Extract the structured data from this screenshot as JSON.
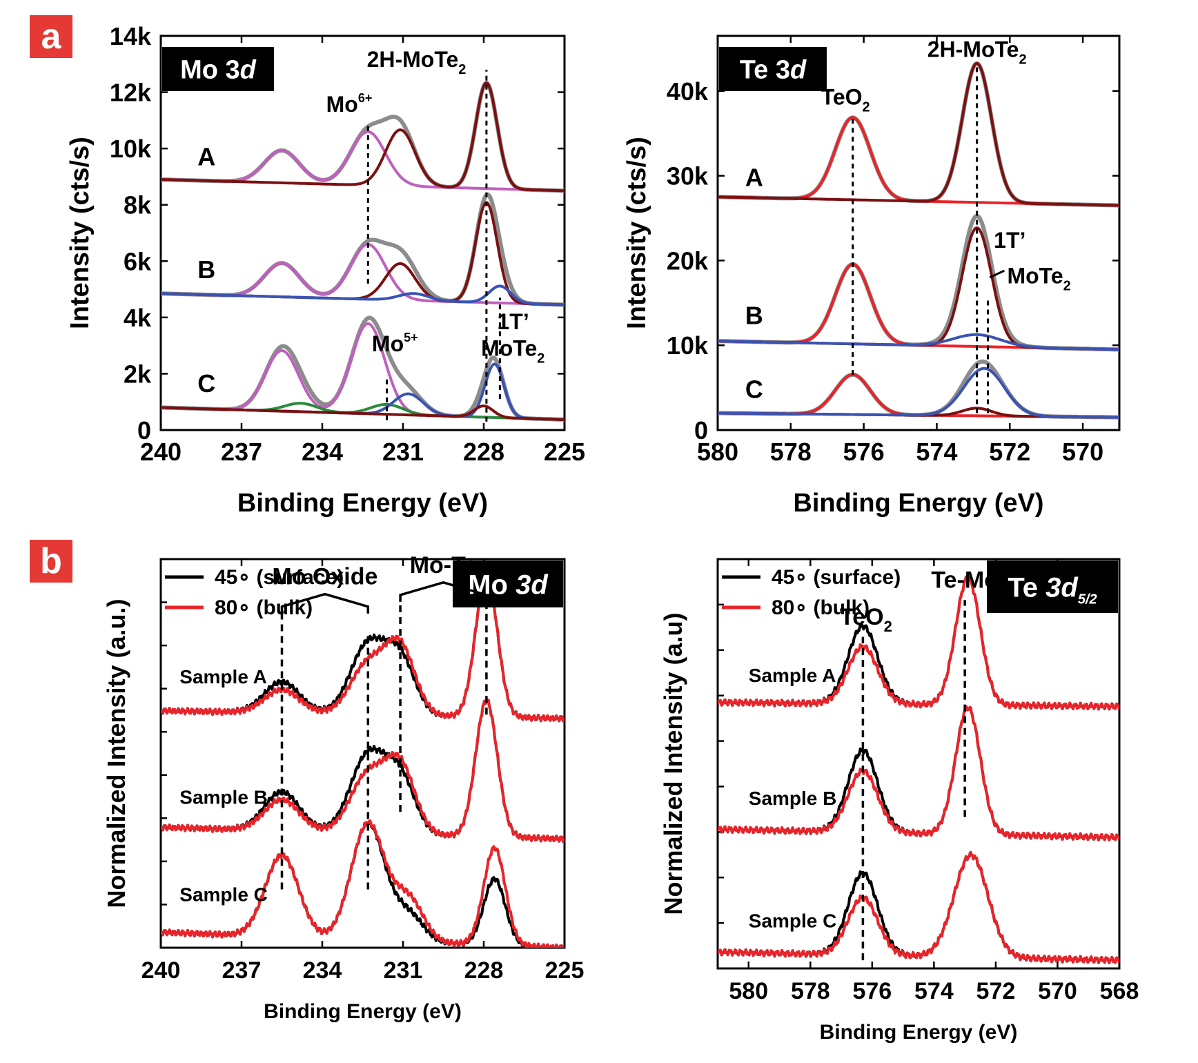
{
  "panel_labels": {
    "a": "a",
    "b": "b"
  },
  "colors": {
    "panel_label_bg": "#e53935",
    "mo6": "#c05fc0",
    "mo_te": "#7b1010",
    "one_t": "#3953b4",
    "mo5": "#2a8a3a",
    "gray": "#8c8c8c",
    "red": "#e8242a",
    "black": "#000000"
  },
  "chart_data": [
    {
      "id": "a_mo",
      "type": "line",
      "title": "Mo 3d",
      "title_plain": "Mo 3",
      "title_italic": "d",
      "xlabel": "Binding Energy (eV)",
      "ylabel": "Intensity (cts/s)",
      "xlim": [
        240,
        225
      ],
      "ylim": [
        0,
        14000
      ],
      "xticks": [
        240,
        237,
        234,
        231,
        228,
        225
      ],
      "yticks": [
        0,
        2000,
        4000,
        6000,
        8000,
        10000,
        12000,
        14000
      ],
      "ytick_labels": [
        "0",
        "2k",
        "4k",
        "6k",
        "8k",
        "10k",
        "12k",
        "14k"
      ],
      "samples": [
        {
          "label": "A",
          "base_left": 8900,
          "base_right": 8500,
          "components": [
            {
              "name": "Mo6+",
              "color_key": "mo6",
              "peaks": [
                [
                  235.5,
                  1150,
                  0.65
                ],
                [
                  232.3,
                  1900,
                  0.65
                ]
              ]
            },
            {
              "name": "2H-MoTe2",
              "color_key": "mo_te",
              "peaks": [
                [
                  231.1,
                  2000,
                  0.55
                ],
                [
                  227.9,
                  3750,
                  0.4
                ]
              ]
            }
          ]
        },
        {
          "label": "B",
          "base_left": 4850,
          "base_right": 4450,
          "components": [
            {
              "name": "Mo6+",
              "color_key": "mo6",
              "peaks": [
                [
                  235.5,
                  1200,
                  0.65
                ],
                [
                  232.3,
                  1950,
                  0.65
                ]
              ]
            },
            {
              "name": "2H-MoTe2",
              "color_key": "mo_te",
              "peaks": [
                [
                  231.1,
                  1300,
                  0.55
                ],
                [
                  227.9,
                  3550,
                  0.4
                ]
              ]
            },
            {
              "name": "1T'-MoTe2",
              "color_key": "one_t",
              "peaks": [
                [
                  230.6,
                  250,
                  0.55
                ],
                [
                  227.4,
                  600,
                  0.4
                ]
              ]
            }
          ]
        },
        {
          "label": "C",
          "base_left": 800,
          "base_right": 370,
          "components": [
            {
              "name": "Mo6+",
              "color_key": "mo6",
              "peaks": [
                [
                  235.5,
                  2150,
                  0.62
                ],
                [
                  232.3,
                  3200,
                  0.62
                ]
              ]
            },
            {
              "name": "Mo5+",
              "color_key": "mo5",
              "peaks": [
                [
                  234.8,
                  300,
                  0.6
                ],
                [
                  231.6,
                  350,
                  0.6
                ]
              ]
            },
            {
              "name": "1T'-MoTe2",
              "color_key": "one_t",
              "peaks": [
                [
                  230.8,
                  750,
                  0.55
                ],
                [
                  227.6,
                  1900,
                  0.35
                ]
              ]
            },
            {
              "name": "2H-MoTe2",
              "color_key": "mo_te",
              "peaks": [
                [
                  228.0,
                  400,
                  0.35
                ]
              ]
            }
          ]
        }
      ],
      "sample_label_x": [
        238.3,
        238.3,
        238.3
      ],
      "sample_label_y": [
        9400,
        5400,
        1350
      ],
      "dashed_lines": [
        {
          "x": 232.3,
          "y0": 5200,
          "y1": 10900
        },
        {
          "x": 227.9,
          "y0": 300,
          "y1": 12800
        },
        {
          "x": 231.6,
          "y0": 350,
          "y1": 1950
        },
        {
          "x": 227.4,
          "y0": 1100,
          "y1": 4700
        }
      ],
      "annotations": {
        "mo6": {
          "base": "Mo",
          "sup": "6+",
          "x": 233.0,
          "y": 11300
        },
        "two_h": {
          "pre": "2H-MoTe",
          "sub": "2",
          "x": 230.5,
          "y": 12900
        },
        "mo5": {
          "base": "Mo",
          "sup": "5+",
          "x": 231.3,
          "y": 2800
        },
        "one_t_top": {
          "text": "1T’",
          "x": 227.5,
          "y": 3580
        },
        "one_t_bot": {
          "pre": "MoTe",
          "sub": "2",
          "x": 228.1,
          "y": 2630
        }
      }
    },
    {
      "id": "a_te",
      "type": "line",
      "title": "Te 3d",
      "title_plain": "Te 3",
      "title_italic": "d",
      "xlabel": "Binding Energy (eV)",
      "ylabel": "Intensity (cts/s)",
      "xlim": [
        580,
        569
      ],
      "ylim": [
        0,
        46500
      ],
      "xticks": [
        580,
        578,
        576,
        574,
        572,
        570
      ],
      "yticks": [
        0,
        10000,
        20000,
        30000,
        40000
      ],
      "ytick_labels": [
        "0",
        "10k",
        "20k",
        "30k",
        "40k"
      ],
      "samples": [
        {
          "label": "A",
          "base_left": 27500,
          "base_right": 26500,
          "components": [
            {
              "name": "TeO2",
              "color_key": "red",
              "peaks": [
                [
                  576.3,
                  9700,
                  0.48
                ]
              ]
            },
            {
              "name": "2H-MoTe2",
              "color_key": "mo_te",
              "peaks": [
                [
                  572.9,
                  16400,
                  0.4
                ]
              ]
            }
          ]
        },
        {
          "label": "B",
          "base_left": 10500,
          "base_right": 9500,
          "components": [
            {
              "name": "TeO2",
              "color_key": "red",
              "peaks": [
                [
                  576.3,
                  9400,
                  0.48
                ]
              ]
            },
            {
              "name": "2H-MoTe2",
              "color_key": "mo_te",
              "peaks": [
                [
                  572.9,
                  14000,
                  0.4
                ]
              ]
            },
            {
              "name": "1T'-MoTe2",
              "color_key": "one_t",
              "peaks": [
                [
                  572.9,
                  1400,
                  0.65
                ]
              ]
            }
          ]
        },
        {
          "label": "C",
          "base_left": 2000,
          "base_right": 1500,
          "components": [
            {
              "name": "TeO2",
              "color_key": "red",
              "peaks": [
                [
                  576.3,
                  4700,
                  0.48
                ]
              ]
            },
            {
              "name": "2H-MoTe2",
              "color_key": "mo_te",
              "peaks": [
                [
                  572.9,
                  900,
                  0.4
                ]
              ]
            },
            {
              "name": "1T'-MoTe2",
              "color_key": "one_t",
              "peaks": [
                [
                  572.7,
                  5600,
                  0.55
                ]
              ]
            }
          ]
        }
      ],
      "sample_label_x": [
        579.0,
        579.0,
        579.0
      ],
      "sample_label_y": [
        28800,
        12500,
        3800
      ],
      "dashed_lines": [
        {
          "x": 576.3,
          "y0": 6500,
          "y1": 37000
        },
        {
          "x": 572.9,
          "y0": 2000,
          "y1": 42800
        },
        {
          "x": 572.6,
          "y0": 2000,
          "y1": 15500
        }
      ],
      "annotations": {
        "teo2": {
          "pre": "TeO",
          "sub": "2",
          "x": 576.5,
          "y": 38400
        },
        "two_h": {
          "pre": "2H-MoTe",
          "sub": "2",
          "x": 572.9,
          "y": 44000
        },
        "one_t_top": {
          "text": "1T’",
          "x": 572.0,
          "y": 21500
        },
        "one_t_bot": {
          "pre": "MoTe",
          "sub": "2",
          "x": 571.2,
          "y": 17300
        }
      }
    },
    {
      "id": "b_mo",
      "type": "line",
      "title": "Mo 3d",
      "title_plain": "Mo ",
      "title_italic": "3d",
      "xlabel": "Binding Energy (eV)",
      "ylabel": "Normalized Intensity (a.u.)",
      "xlim": [
        240,
        225
      ],
      "ylim": [
        0,
        100
      ],
      "xticks": [
        240,
        237,
        234,
        231,
        228,
        225
      ],
      "legend": [
        {
          "label": "45∘ (surface)",
          "color_key": "black"
        },
        {
          "label": "80∘ (bulk)",
          "color_key": "red"
        }
      ],
      "samples": [
        {
          "label": "Sample A",
          "base_left": 61,
          "base_right": 59,
          "surface": [
            [
              235.5,
              8,
              0.65
            ],
            [
              232.3,
              18,
              0.65
            ],
            [
              231.1,
              14,
              0.55
            ],
            [
              227.9,
              37,
              0.4
            ]
          ],
          "bulk": [
            [
              235.5,
              6,
              0.65
            ],
            [
              232.3,
              13,
              0.65
            ],
            [
              231.1,
              17,
              0.55
            ],
            [
              227.9,
              37,
              0.4
            ]
          ]
        },
        {
          "label": "Sample B",
          "base_left": 31,
          "base_right": 28,
          "surface": [
            [
              235.5,
              10,
              0.65
            ],
            [
              232.3,
              20,
              0.65
            ],
            [
              231.1,
              14,
              0.55
            ],
            [
              227.9,
              35,
              0.4
            ]
          ],
          "bulk": [
            [
              235.5,
              8,
              0.65
            ],
            [
              232.3,
              15,
              0.65
            ],
            [
              231.1,
              17,
              0.55
            ],
            [
              227.9,
              35,
              0.4
            ]
          ]
        },
        {
          "label": "Sample C",
          "base_left": 4,
          "base_right": 0,
          "surface": [
            [
              235.5,
              21,
              0.62
            ],
            [
              232.3,
              30,
              0.62
            ],
            [
              230.8,
              7,
              0.55
            ],
            [
              227.6,
              17,
              0.4
            ]
          ],
          "bulk": [
            [
              235.5,
              21,
              0.62
            ],
            [
              232.3,
              30,
              0.62
            ],
            [
              230.8,
              11,
              0.55
            ],
            [
              227.6,
              25,
              0.4
            ]
          ]
        }
      ],
      "sample_label_x": [
        239.3,
        239.3,
        239.3
      ],
      "sample_label_y": [
        68,
        37,
        12
      ],
      "dashed_lines": [
        {
          "x": 235.5,
          "y0": 15,
          "y1": 86
        },
        {
          "x": 232.3,
          "y0": 15,
          "y1": 81
        },
        {
          "x": 231.1,
          "y0": 35,
          "y1": 89
        },
        {
          "x": 227.9,
          "y0": 60,
          "y1": 89
        }
      ],
      "brackets": [
        {
          "text": "Mo Oxide",
          "x0": 235.5,
          "x1": 232.3,
          "y_end": 86,
          "y_peak": 91
        },
        {
          "text": "Mo-Te",
          "x0": 231.1,
          "x1": 227.9,
          "y_end": 89,
          "y_peak": 94
        }
      ]
    },
    {
      "id": "b_te",
      "type": "line",
      "title": "Te 3d5/2",
      "title_plain": "Te ",
      "title_italic": "3d",
      "title_sub": "5/2",
      "xlabel": "Binding Energy (eV)",
      "ylabel": "Normalized Intensity (a.u)",
      "xlim": [
        581,
        568
      ],
      "ylim": [
        0,
        100
      ],
      "xticks": [
        580,
        578,
        576,
        574,
        572,
        570,
        568
      ],
      "legend": [
        {
          "label": "45∘ (surface)",
          "color_key": "black"
        },
        {
          "label": "80∘ (bulk)",
          "color_key": "red"
        }
      ],
      "samples": [
        {
          "label": "Sample A",
          "base_left": 65,
          "base_right": 64,
          "surface": [
            [
              576.3,
              19,
              0.48
            ],
            [
              572.9,
              31,
              0.4
            ]
          ],
          "bulk": [
            [
              576.3,
              14,
              0.48
            ],
            [
              572.9,
              31,
              0.4
            ]
          ]
        },
        {
          "label": "Sample B",
          "base_left": 34,
          "base_right": 32,
          "surface": [
            [
              576.3,
              20,
              0.48
            ],
            [
              572.9,
              31,
              0.4
            ]
          ],
          "bulk": [
            [
              576.3,
              15,
              0.48
            ],
            [
              572.9,
              31,
              0.4
            ]
          ]
        },
        {
          "label": "Sample C",
          "base_left": 4,
          "base_right": 2,
          "surface": [
            [
              576.3,
              20,
              0.48
            ],
            [
              572.8,
              25,
              0.55
            ]
          ],
          "bulk": [
            [
              576.3,
              14,
              0.48
            ],
            [
              572.8,
              25,
              0.55
            ]
          ]
        }
      ],
      "sample_label_x": [
        580.0,
        580.0,
        580.0
      ],
      "sample_label_y": [
        70,
        40,
        10
      ],
      "dashed_lines": [
        {
          "x": 576.3,
          "y0": 2,
          "y1": 81
        },
        {
          "x": 573.0,
          "y0": 37,
          "y1": 90
        }
      ],
      "peak_labels": [
        {
          "pre": "TeO",
          "sub": "2",
          "x": 576.2,
          "y": 84
        },
        {
          "text": "Te-Mo",
          "x": 573.0,
          "y": 93
        }
      ]
    }
  ]
}
